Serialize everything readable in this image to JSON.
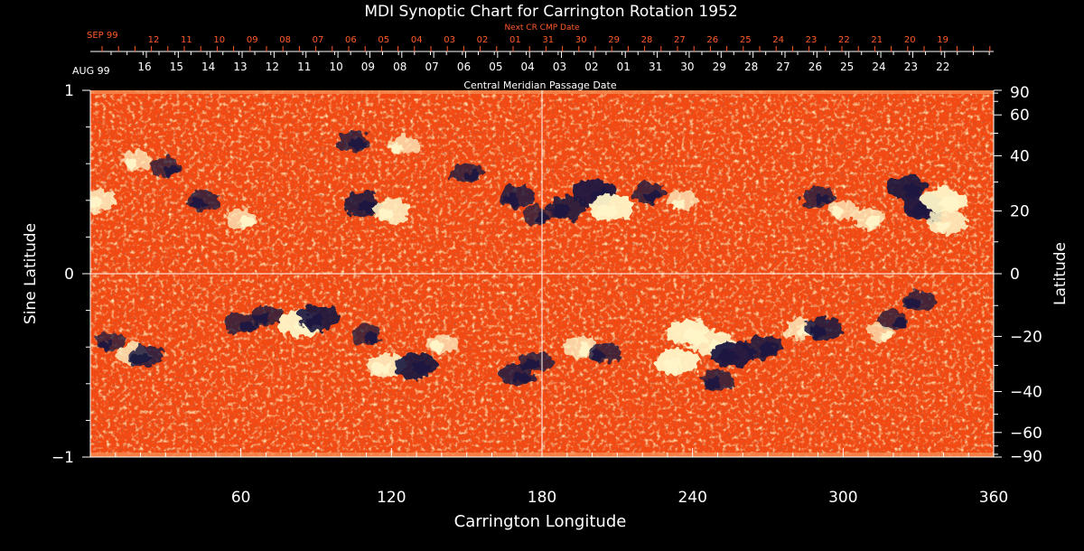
{
  "chart_data": {
    "type": "heatmap",
    "title": "MDI Synoptic Chart for Carrington Rotation 1952",
    "xlabel": "Carrington Longitude",
    "ylabel_left": "Sine Latitude",
    "ylabel_right": "Latitude",
    "x_range": [
      0,
      360
    ],
    "x_ticks": [
      60,
      120,
      180,
      240,
      300,
      360
    ],
    "y_left_range": [
      -1,
      1
    ],
    "y_left_ticks": [
      -1,
      0,
      1
    ],
    "y_left_tick_labels": [
      "−1",
      "0",
      "1"
    ],
    "y_right_ticks": [
      90,
      60,
      40,
      20,
      0,
      -20,
      -40,
      -60,
      -90
    ],
    "y_right_tick_labels": [
      "90",
      "60",
      "40",
      "20",
      "0",
      "−20",
      "−40",
      "−60",
      "−90"
    ],
    "cmp_axis": {
      "label": "Central Meridian Passage Date",
      "start_label": "AUG 99",
      "dates": [
        "16",
        "15",
        "14",
        "13",
        "12",
        "11",
        "10",
        "09",
        "08",
        "07",
        "06",
        "05",
        "04",
        "03",
        "02",
        "01",
        "31",
        "30",
        "29",
        "28",
        "27",
        "26",
        "25",
        "24",
        "23",
        "22"
      ]
    },
    "next_cmp_axis": {
      "label": "Next CR CMP Date",
      "start_label": "SEP 99",
      "dates": [
        "12",
        "11",
        "10",
        "09",
        "08",
        "07",
        "06",
        "05",
        "04",
        "03",
        "02",
        "01",
        "31",
        "30",
        "29",
        "28",
        "27",
        "26",
        "25",
        "24",
        "23",
        "22",
        "21",
        "20",
        "19"
      ]
    },
    "gridlines": {
      "longitude": 180,
      "sine_latitude": 0
    },
    "colors": {
      "background": "#000000",
      "axis": "#ffffff",
      "next_cmp_text": "#ff5a2a",
      "map_base": "#f24a12",
      "positive_polarity": "#fff6c8",
      "negative_polarity": "#1a1840"
    },
    "regions": [
      {
        "lon": 18,
        "sinlat": 0.62,
        "polarity": "positive",
        "strength": 0.5
      },
      {
        "lon": 30,
        "sinlat": 0.58,
        "polarity": "negative",
        "strength": 0.5
      },
      {
        "lon": 45,
        "sinlat": 0.4,
        "polarity": "negative",
        "strength": 0.6
      },
      {
        "lon": 60,
        "sinlat": 0.3,
        "polarity": "positive",
        "strength": 0.5
      },
      {
        "lon": 3,
        "sinlat": 0.4,
        "polarity": "positive",
        "strength": 0.7
      },
      {
        "lon": 105,
        "sinlat": 0.72,
        "polarity": "negative",
        "strength": 0.6
      },
      {
        "lon": 125,
        "sinlat": 0.7,
        "polarity": "positive",
        "strength": 0.5
      },
      {
        "lon": 108,
        "sinlat": 0.38,
        "polarity": "negative",
        "strength": 0.8
      },
      {
        "lon": 120,
        "sinlat": 0.34,
        "polarity": "positive",
        "strength": 0.8
      },
      {
        "lon": 150,
        "sinlat": 0.55,
        "polarity": "negative",
        "strength": 0.6
      },
      {
        "lon": 170,
        "sinlat": 0.42,
        "polarity": "negative",
        "strength": 0.7
      },
      {
        "lon": 178,
        "sinlat": 0.32,
        "polarity": "negative",
        "strength": 0.5
      },
      {
        "lon": 190,
        "sinlat": 0.36,
        "polarity": "negative",
        "strength": 0.8
      },
      {
        "lon": 201,
        "sinlat": 0.44,
        "polarity": "negative",
        "strength": 1.0
      },
      {
        "lon": 208,
        "sinlat": 0.36,
        "polarity": "positive",
        "strength": 1.0
      },
      {
        "lon": 222,
        "sinlat": 0.44,
        "polarity": "negative",
        "strength": 0.6
      },
      {
        "lon": 236,
        "sinlat": 0.4,
        "polarity": "positive",
        "strength": 0.5
      },
      {
        "lon": 290,
        "sinlat": 0.42,
        "polarity": "negative",
        "strength": 0.6
      },
      {
        "lon": 300,
        "sinlat": 0.35,
        "polarity": "positive",
        "strength": 0.5
      },
      {
        "lon": 325,
        "sinlat": 0.47,
        "polarity": "negative",
        "strength": 0.9
      },
      {
        "lon": 333,
        "sinlat": 0.36,
        "polarity": "negative",
        "strength": 1.0
      },
      {
        "lon": 340,
        "sinlat": 0.4,
        "polarity": "positive",
        "strength": 1.0
      },
      {
        "lon": 342,
        "sinlat": 0.28,
        "polarity": "positive",
        "strength": 0.8
      },
      {
        "lon": 310,
        "sinlat": 0.3,
        "polarity": "positive",
        "strength": 0.6
      },
      {
        "lon": 8,
        "sinlat": -0.37,
        "polarity": "negative",
        "strength": 0.5
      },
      {
        "lon": 17,
        "sinlat": -0.44,
        "polarity": "positive",
        "strength": 0.6
      },
      {
        "lon": 22,
        "sinlat": -0.45,
        "polarity": "negative",
        "strength": 0.7
      },
      {
        "lon": 60,
        "sinlat": -0.27,
        "polarity": "negative",
        "strength": 0.6
      },
      {
        "lon": 70,
        "sinlat": -0.23,
        "polarity": "negative",
        "strength": 0.6
      },
      {
        "lon": 84,
        "sinlat": -0.27,
        "polarity": "positive",
        "strength": 1.0
      },
      {
        "lon": 91,
        "sinlat": -0.24,
        "polarity": "negative",
        "strength": 0.9
      },
      {
        "lon": 110,
        "sinlat": -0.33,
        "polarity": "negative",
        "strength": 0.5
      },
      {
        "lon": 118,
        "sinlat": -0.5,
        "polarity": "positive",
        "strength": 0.8
      },
      {
        "lon": 130,
        "sinlat": -0.5,
        "polarity": "negative",
        "strength": 0.9
      },
      {
        "lon": 140,
        "sinlat": -0.38,
        "polarity": "positive",
        "strength": 0.5
      },
      {
        "lon": 170,
        "sinlat": -0.55,
        "polarity": "negative",
        "strength": 0.7
      },
      {
        "lon": 178,
        "sinlat": -0.48,
        "polarity": "negative",
        "strength": 0.6
      },
      {
        "lon": 195,
        "sinlat": -0.4,
        "polarity": "positive",
        "strength": 0.6
      },
      {
        "lon": 205,
        "sinlat": -0.43,
        "polarity": "negative",
        "strength": 0.6
      },
      {
        "lon": 238,
        "sinlat": -0.32,
        "polarity": "positive",
        "strength": 1.0
      },
      {
        "lon": 234,
        "sinlat": -0.48,
        "polarity": "positive",
        "strength": 1.0
      },
      {
        "lon": 248,
        "sinlat": -0.38,
        "polarity": "positive",
        "strength": 0.9
      },
      {
        "lon": 256,
        "sinlat": -0.44,
        "polarity": "negative",
        "strength": 1.0
      },
      {
        "lon": 268,
        "sinlat": -0.4,
        "polarity": "negative",
        "strength": 0.8
      },
      {
        "lon": 250,
        "sinlat": -0.58,
        "polarity": "negative",
        "strength": 0.6
      },
      {
        "lon": 283,
        "sinlat": -0.3,
        "polarity": "positive",
        "strength": 0.6
      },
      {
        "lon": 292,
        "sinlat": -0.3,
        "polarity": "negative",
        "strength": 0.8
      },
      {
        "lon": 320,
        "sinlat": -0.25,
        "polarity": "negative",
        "strength": 0.5
      },
      {
        "lon": 330,
        "sinlat": -0.15,
        "polarity": "negative",
        "strength": 0.6
      },
      {
        "lon": 315,
        "sinlat": -0.32,
        "polarity": "positive",
        "strength": 0.4
      }
    ]
  }
}
